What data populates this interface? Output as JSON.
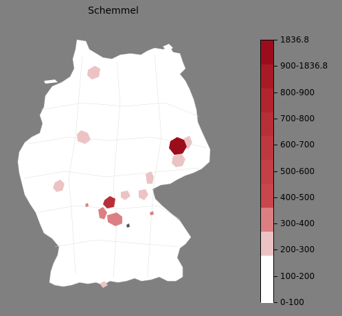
{
  "map": {
    "title": "Schemmel",
    "land_color": "#ffffff",
    "border_color": "#c8c8c8"
  },
  "legend": {
    "labels": [
      "1836.8",
      "900-1836.8",
      "800-900",
      "700-800",
      "600-700",
      "500-600",
      "400-500",
      "300-400",
      "200-300",
      "100-200",
      "0-100"
    ],
    "bins": [
      {
        "label": "0-100",
        "color": "#ffffff"
      },
      {
        "label": "100-200",
        "color": "#ffffff"
      },
      {
        "label": "200-300",
        "color": "#ecc3c4"
      },
      {
        "label": "300-400",
        "color": "#dc7f82"
      },
      {
        "label": "400-500",
        "color": "#c9464d"
      },
      {
        "label": "500-600",
        "color": "#c43f46"
      },
      {
        "label": "600-700",
        "color": "#bf3840"
      },
      {
        "label": "700-800",
        "color": "#b92f37"
      },
      {
        "label": "800-900",
        "color": "#b2252e"
      },
      {
        "label": "900-1836.8",
        "color": "#a81a25"
      },
      {
        "label": "1836.8",
        "color": "#9c0d1c"
      }
    ]
  }
}
